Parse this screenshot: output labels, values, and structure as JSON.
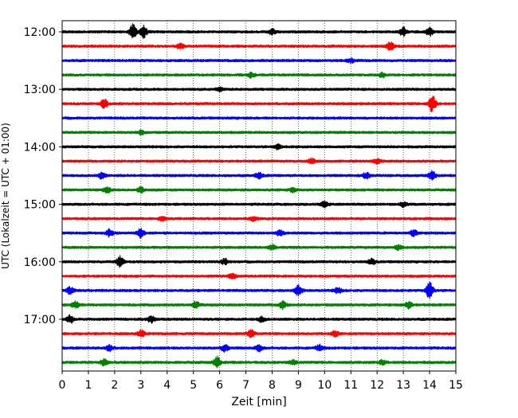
{
  "chart_data": {
    "type": "line",
    "xlabel": "Zeit  [min]",
    "ylabel": "UTC (Lokalzeit = UTC + 01:00)",
    "xlim": [
      0,
      15
    ],
    "x_ticks": [
      "0",
      "1",
      "2",
      "3",
      "4",
      "5",
      "6",
      "7",
      "8",
      "9",
      "10",
      "11",
      "12",
      "13",
      "14",
      "15"
    ],
    "y_ticks": [
      "12:00",
      "13:00",
      "14:00",
      "15:00",
      "16:00",
      "17:00"
    ],
    "trace_interval_min": 15,
    "grid": "vertical dotted",
    "row_colors": [
      "#000000",
      "#ff0000",
      "#0000ff",
      "#008000"
    ],
    "traces": [
      {
        "start": "12:00",
        "color": "#000000",
        "events": [
          [
            2.7,
            1.0
          ],
          [
            3.1,
            0.8
          ],
          [
            8.0,
            0.35
          ],
          [
            13.0,
            0.6
          ],
          [
            14.0,
            0.5
          ]
        ]
      },
      {
        "start": "12:15",
        "color": "#ff0000",
        "events": [
          [
            12.5,
            0.6
          ],
          [
            4.5,
            0.3
          ]
        ]
      },
      {
        "start": "12:30",
        "color": "#0000ff",
        "events": [
          [
            11.0,
            0.25
          ]
        ]
      },
      {
        "start": "12:45",
        "color": "#008000",
        "events": [
          [
            7.2,
            0.3
          ],
          [
            12.2,
            0.3
          ]
        ]
      },
      {
        "start": "13:00",
        "color": "#000000",
        "events": [
          [
            6.0,
            0.25
          ]
        ]
      },
      {
        "start": "13:15",
        "color": "#ff0000",
        "events": [
          [
            1.6,
            0.6
          ],
          [
            14.1,
            1.1
          ]
        ]
      },
      {
        "start": "13:30",
        "color": "#0000ff",
        "events": []
      },
      {
        "start": "13:45",
        "color": "#008000",
        "events": [
          [
            3.0,
            0.25
          ]
        ]
      },
      {
        "start": "14:00",
        "color": "#000000",
        "events": [
          [
            8.2,
            0.3
          ]
        ]
      },
      {
        "start": "14:15",
        "color": "#ff0000",
        "events": [
          [
            9.5,
            0.35
          ],
          [
            12.0,
            0.3
          ]
        ]
      },
      {
        "start": "14:30",
        "color": "#0000ff",
        "events": [
          [
            1.5,
            0.4
          ],
          [
            7.5,
            0.4
          ],
          [
            11.6,
            0.4
          ],
          [
            14.1,
            0.6
          ]
        ]
      },
      {
        "start": "14:45",
        "color": "#008000",
        "events": [
          [
            1.7,
            0.45
          ],
          [
            3.0,
            0.35
          ],
          [
            8.8,
            0.25
          ]
        ]
      },
      {
        "start": "15:00",
        "color": "#000000",
        "events": [
          [
            10.0,
            0.4
          ],
          [
            13.0,
            0.3
          ]
        ]
      },
      {
        "start": "15:15",
        "color": "#ff0000",
        "events": [
          [
            3.8,
            0.3
          ],
          [
            7.3,
            0.25
          ]
        ]
      },
      {
        "start": "15:30",
        "color": "#0000ff",
        "events": [
          [
            1.8,
            0.5
          ],
          [
            3.0,
            0.6
          ],
          [
            8.3,
            0.4
          ],
          [
            13.4,
            0.4
          ]
        ]
      },
      {
        "start": "15:45",
        "color": "#008000",
        "events": [
          [
            8.0,
            0.3
          ],
          [
            12.8,
            0.3
          ]
        ]
      },
      {
        "start": "16:00",
        "color": "#000000",
        "events": [
          [
            2.2,
            0.7
          ],
          [
            6.2,
            0.35
          ],
          [
            11.8,
            0.35
          ]
        ]
      },
      {
        "start": "16:15",
        "color": "#ff0000",
        "events": [
          [
            6.5,
            0.4
          ]
        ]
      },
      {
        "start": "16:30",
        "color": "#0000ff",
        "events": [
          [
            0.3,
            0.5
          ],
          [
            9.0,
            0.7
          ],
          [
            10.5,
            0.35
          ],
          [
            14.0,
            1.2
          ]
        ]
      },
      {
        "start": "16:45",
        "color": "#008000",
        "events": [
          [
            0.5,
            0.45
          ],
          [
            5.1,
            0.4
          ],
          [
            8.4,
            0.55
          ],
          [
            13.2,
            0.45
          ]
        ]
      },
      {
        "start": "17:00",
        "color": "#000000",
        "events": [
          [
            0.3,
            0.5
          ],
          [
            3.4,
            0.45
          ],
          [
            7.6,
            0.35
          ]
        ]
      },
      {
        "start": "17:15",
        "color": "#ff0000",
        "events": [
          [
            3.0,
            0.45
          ],
          [
            7.2,
            0.5
          ],
          [
            10.4,
            0.35
          ]
        ]
      },
      {
        "start": "17:30",
        "color": "#0000ff",
        "events": [
          [
            1.8,
            0.4
          ],
          [
            6.2,
            0.45
          ],
          [
            7.5,
            0.4
          ],
          [
            9.8,
            0.4
          ]
        ]
      },
      {
        "start": "17:45",
        "color": "#008000",
        "events": [
          [
            5.9,
            0.75
          ],
          [
            1.6,
            0.4
          ],
          [
            8.8,
            0.3
          ],
          [
            12.2,
            0.3
          ]
        ]
      }
    ]
  }
}
